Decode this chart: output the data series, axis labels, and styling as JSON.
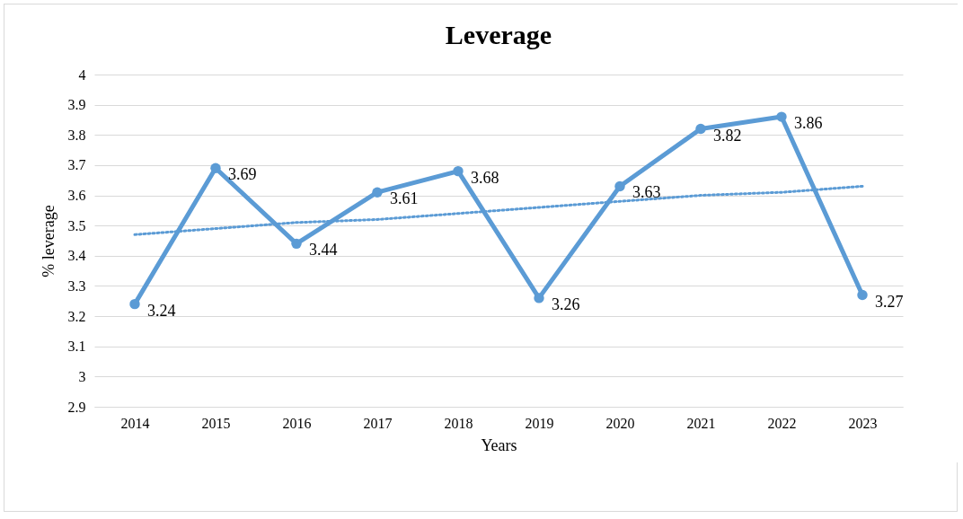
{
  "chart_data": {
    "type": "line",
    "title": "Leverage",
    "xlabel": "Years",
    "ylabel": "% leverage",
    "categories": [
      "2014",
      "2015",
      "2016",
      "2017",
      "2018",
      "2019",
      "2020",
      "2021",
      "2022",
      "2023"
    ],
    "series": [
      {
        "color": "#5b9bd5",
        "values": [
          3.24,
          3.69,
          3.44,
          3.61,
          3.68,
          3.26,
          3.63,
          3.82,
          3.86,
          3.27
        ],
        "value_labels": [
          "3.24",
          "3.69",
          "3.44",
          "3.61",
          "3.68",
          "3.26",
          "3.63",
          "3.82",
          "3.86",
          "3.27"
        ],
        "marker": "circle",
        "line_style": "solid"
      },
      {
        "type": "line",
        "color": "#5b9bd5",
        "values": [
          3.47,
          3.49,
          3.51,
          3.52,
          3.54,
          3.56,
          3.58,
          3.6,
          3.61,
          3.63
        ],
        "marker": "none",
        "line_style": "dotted"
      }
    ],
    "ylim": [
      2.9,
      4
    ],
    "yticks": [
      2.9,
      3,
      3.1,
      3.2,
      3.3,
      3.4,
      3.5,
      3.6,
      3.7,
      3.8,
      3.9,
      4
    ],
    "grid": "y"
  }
}
